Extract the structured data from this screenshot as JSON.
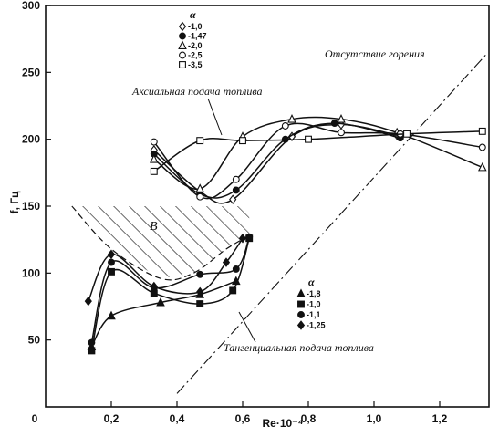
{
  "chart_data": {
    "type": "line",
    "ylabel": "f, Гц",
    "xlabel": "Re·10⁻⁴",
    "xlim": [
      0,
      1.35
    ],
    "ylim": [
      0,
      300
    ],
    "xticks": [
      {
        "v": 0,
        "label": "0"
      },
      {
        "v": 0.2,
        "label": "0,2"
      },
      {
        "v": 0.4,
        "label": "0,4"
      },
      {
        "v": 0.6,
        "label": "0,6"
      },
      {
        "v": 0.8,
        "label": "0,8"
      },
      {
        "v": 1.0,
        "label": "1,0"
      },
      {
        "v": 1.2,
        "label": "1,2"
      }
    ],
    "yticks": [
      {
        "v": 50,
        "label": "50"
      },
      {
        "v": 100,
        "label": "100"
      },
      {
        "v": 150,
        "label": "150"
      },
      {
        "v": 200,
        "label": "200"
      },
      {
        "v": 250,
        "label": "250"
      },
      {
        "v": 300,
        "label": "300"
      }
    ],
    "annotations": {
      "no_combustion": "Отсутствие горения",
      "axial": "Аксиальная подача топлива",
      "tangential": "Тангенциальная подача топлива",
      "region": "B"
    },
    "legend_axial": {
      "title": "α",
      "entries": [
        {
          "marker": "diamond",
          "label": "-1,0"
        },
        {
          "marker": "circle-filled",
          "label": "-1,47"
        },
        {
          "marker": "triangle-open",
          "label": "-2,0"
        },
        {
          "marker": "circle-open",
          "label": "-2,5"
        },
        {
          "marker": "square-open",
          "label": "-3,5"
        }
      ]
    },
    "legend_tangential": {
      "title": "α",
      "entries": [
        {
          "marker": "triangle-filled",
          "label": "-1,8"
        },
        {
          "marker": "square-filled",
          "label": "-1,0"
        },
        {
          "marker": "circle-filled",
          "label": "-1,1"
        },
        {
          "marker": "diamond-filled",
          "label": "-1,25"
        }
      ]
    },
    "no_combustion_line": [
      [
        0.4,
        10
      ],
      [
        1.34,
        263
      ]
    ],
    "region_B_boundary": [
      [
        0.08,
        150
      ],
      [
        0.2,
        118
      ],
      [
        0.35,
        96
      ],
      [
        0.45,
        100
      ],
      [
        0.55,
        118
      ],
      [
        0.62,
        128
      ]
    ],
    "axial_series": [
      {
        "marker": "diamond",
        "points": [
          [
            0.33,
            192
          ],
          [
            0.47,
            161
          ],
          [
            0.57,
            155
          ],
          [
            0.75,
            202
          ],
          [
            0.9,
            211
          ],
          [
            1.07,
            203
          ]
        ]
      },
      {
        "marker": "circle-filled",
        "points": [
          [
            0.33,
            189
          ],
          [
            0.47,
            159
          ],
          [
            0.58,
            162
          ],
          [
            0.73,
            200
          ],
          [
            0.88,
            212
          ],
          [
            1.08,
            201
          ]
        ]
      },
      {
        "marker": "triangle-open",
        "points": [
          [
            0.33,
            185
          ],
          [
            0.47,
            163
          ],
          [
            0.6,
            202
          ],
          [
            0.75,
            215
          ],
          [
            0.9,
            215
          ],
          [
            1.07,
            205
          ],
          [
            1.33,
            179
          ]
        ]
      },
      {
        "marker": "circle-open",
        "points": [
          [
            0.33,
            198
          ],
          [
            0.47,
            157
          ],
          [
            0.58,
            170
          ],
          [
            0.73,
            210
          ],
          [
            0.9,
            205
          ],
          [
            1.08,
            204
          ],
          [
            1.33,
            194
          ]
        ]
      },
      {
        "marker": "square-open",
        "points": [
          [
            0.33,
            176
          ],
          [
            0.47,
            199
          ],
          [
            0.6,
            199
          ],
          [
            0.8,
            200
          ],
          [
            1.1,
            204
          ],
          [
            1.33,
            206
          ]
        ]
      }
    ],
    "tangential_series": [
      {
        "marker": "triangle-filled",
        "points": [
          [
            0.14,
            45
          ],
          [
            0.2,
            68
          ],
          [
            0.35,
            78
          ],
          [
            0.47,
            84
          ],
          [
            0.58,
            94
          ]
        ]
      },
      {
        "marker": "square-filled",
        "points": [
          [
            0.14,
            42
          ],
          [
            0.2,
            101
          ],
          [
            0.33,
            85
          ],
          [
            0.47,
            77
          ],
          [
            0.57,
            87
          ],
          [
            0.62,
            126
          ]
        ]
      },
      {
        "marker": "circle-filled",
        "points": [
          [
            0.14,
            48
          ],
          [
            0.2,
            108
          ],
          [
            0.33,
            89
          ],
          [
            0.47,
            99
          ],
          [
            0.58,
            103
          ],
          [
            0.62,
            127
          ]
        ]
      },
      {
        "marker": "diamond-filled",
        "points": [
          [
            0.13,
            79
          ],
          [
            0.2,
            114
          ],
          [
            0.33,
            90
          ],
          [
            0.47,
            86
          ],
          [
            0.55,
            108
          ],
          [
            0.6,
            126
          ]
        ]
      }
    ]
  }
}
